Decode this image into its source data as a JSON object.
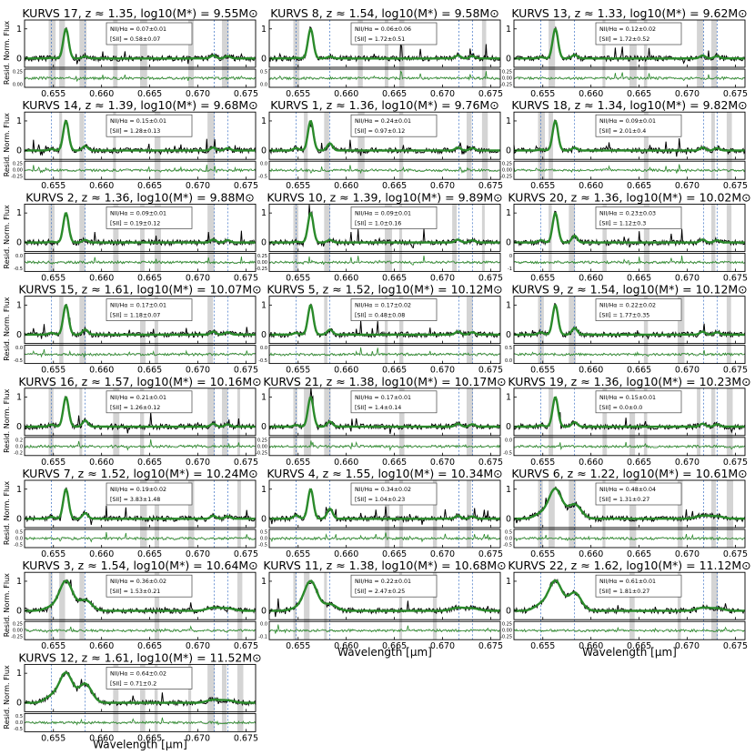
{
  "figure": {
    "ylabel": "Resid. Norm. Flux",
    "xlabel": "Wavelength [μm]",
    "x_ticks": [
      "0.655",
      "0.660",
      "0.665",
      "0.670",
      "0.675"
    ],
    "colors": {
      "data": "#000000",
      "model": "#2a8a2a",
      "line_marker": "#3a6fc4",
      "mask": "#d4d4d4"
    }
  },
  "chart_data": [
    {
      "type": "line",
      "title": "KURVS 17, z ≈ 1.35, log10(M*) = 9.55M⊙",
      "ratio_nii": "NII/Hα = 0.07±0.01",
      "ratio_sii": "[SII] = 0.58±0.07",
      "resid_ticks": [
        "0.25",
        "0.00"
      ],
      "peak": 1,
      "xlim": [
        0.652,
        0.676
      ],
      "ylim": [
        -0.3,
        1.3
      ]
    },
    {
      "type": "line",
      "title": "KURVS 8, z ≈ 1.54, log10(M*) = 9.58M⊙",
      "ratio_nii": "NII/Hα = 0.06±0.06",
      "ratio_sii": "[SII] = 1.72±0.51",
      "resid_ticks": [
        "0.5",
        "0.0"
      ],
      "peak": 1,
      "xlim": [
        0.652,
        0.676
      ],
      "ylim": [
        -0.3,
        1.3
      ]
    },
    {
      "type": "line",
      "title": "KURVS 13, z ≈ 1.33, log10(M*) = 9.62M⊙",
      "ratio_nii": "NII/Hα = 0.12±0.02",
      "ratio_sii": "[SII] = 1.72±0.52",
      "resid_ticks": [
        "0.25",
        "0.00",
        "-0.25"
      ],
      "peak": 1,
      "xlim": [
        0.652,
        0.676
      ],
      "ylim": [
        -0.3,
        1.3
      ]
    },
    {
      "type": "line",
      "title": "KURVS 14, z ≈ 1.39, log10(M*) = 9.68M⊙",
      "ratio_nii": "NII/Hα = 0.15±0.01",
      "ratio_sii": "[SII] = 1.28±0.13",
      "resid_ticks": [
        "0.25",
        "0.00",
        "-0.25"
      ],
      "peak": 1,
      "xlim": [
        0.652,
        0.676
      ],
      "ylim": [
        -0.3,
        1.3
      ]
    },
    {
      "type": "line",
      "title": "KURVS 1, z ≈ 1.36, log10(M*) = 9.76M⊙",
      "ratio_nii": "NII/Hα = 0.24±0.01",
      "ratio_sii": "[SII] = 0.97±0.12",
      "resid_ticks": [
        "0.0",
        "-0.5"
      ],
      "peak": 1,
      "xlim": [
        0.652,
        0.676
      ],
      "ylim": [
        -0.3,
        1.3
      ]
    },
    {
      "type": "line",
      "title": "KURVS 18, z ≈ 1.34, log10(M*) = 9.82M⊙",
      "ratio_nii": "NII/Hα = 0.09±0.01",
      "ratio_sii": "[SII] = 2.01±0.4",
      "resid_ticks": [
        "0.25",
        "0.00",
        "-0.25"
      ],
      "peak": 1,
      "xlim": [
        0.652,
        0.676
      ],
      "ylim": [
        -0.3,
        1.3
      ]
    },
    {
      "type": "line",
      "title": "KURVS 2, z ≈ 1.36, log10(M*) = 9.88M⊙",
      "ratio_nii": "NII/Hα = 0.09±0.01",
      "ratio_sii": "[SII] = 0.19±0.12",
      "resid_ticks": [
        "0.0",
        "-0.5"
      ],
      "peak": 1,
      "xlim": [
        0.652,
        0.676
      ],
      "ylim": [
        -0.3,
        1.3
      ]
    },
    {
      "type": "line",
      "title": "KURVS 10, z ≈ 1.39, log10(M*) = 9.89M⊙",
      "ratio_nii": "NII/Hα = 0.09±0.01",
      "ratio_sii": "[SII] = 1.0±0.16",
      "resid_ticks": [
        "0.25",
        "0.00",
        "-0.25"
      ],
      "peak": 1,
      "xlim": [
        0.652,
        0.676
      ],
      "ylim": [
        -0.3,
        1.3
      ]
    },
    {
      "type": "line",
      "title": "KURVS 20, z ≈ 1.36, log10(M*) = 10.02M⊙",
      "ratio_nii": "NII/Hα = 0.23±0.03",
      "ratio_sii": "[SII] = 1.12±0.3",
      "resid_ticks": [
        "0",
        "-1"
      ],
      "peak": 1,
      "xlim": [
        0.652,
        0.676
      ],
      "ylim": [
        -0.3,
        1.3
      ]
    },
    {
      "type": "line",
      "title": "KURVS 15, z ≈ 1.61, log10(M*) = 10.07M⊙",
      "ratio_nii": "NII/Hα = 0.17±0.01",
      "ratio_sii": "[SII] = 1.18±0.07",
      "resid_ticks": [
        "0.0",
        "-0.5"
      ],
      "peak": 1,
      "xlim": [
        0.652,
        0.676
      ],
      "ylim": [
        -0.3,
        1.3
      ]
    },
    {
      "type": "line",
      "title": "KURVS 5, z ≈ 1.52, log10(M*) = 10.12M⊙",
      "ratio_nii": "NII/Hα = 0.17±0.02",
      "ratio_sii": "[SII] = 0.48±0.08",
      "resid_ticks": [
        "0.0",
        "-0.5"
      ],
      "peak": 1,
      "xlim": [
        0.652,
        0.676
      ],
      "ylim": [
        -0.3,
        1.3
      ]
    },
    {
      "type": "line",
      "title": "KURVS 9, z ≈ 1.54, log10(M*) = 10.12M⊙",
      "ratio_nii": "NII/Hα = 0.22±0.02",
      "ratio_sii": "[SII] = 1.77±0.35",
      "resid_ticks": [
        "0.5",
        "0.0"
      ],
      "peak": 1,
      "xlim": [
        0.652,
        0.676
      ],
      "ylim": [
        -0.3,
        1.3
      ]
    },
    {
      "type": "line",
      "title": "KURVS 16, z ≈ 1.57, log10(M*) = 10.16M⊙",
      "ratio_nii": "NII/Hα = 0.21±0.01",
      "ratio_sii": "[SII] = 1.26±0.12",
      "resid_ticks": [
        "0.2",
        "0.0",
        "-0.2"
      ],
      "peak": 1,
      "xlim": [
        0.652,
        0.676
      ],
      "ylim": [
        -0.3,
        1.3
      ]
    },
    {
      "type": "line",
      "title": "KURVS 21, z ≈ 1.38, log10(M*) = 10.17M⊙",
      "ratio_nii": "NII/Hα = 0.17±0.01",
      "ratio_sii": "[SII] = 1.4±0.14",
      "resid_ticks": [
        "0.25",
        "0.00",
        "-0.25"
      ],
      "peak": 1,
      "xlim": [
        0.652,
        0.676
      ],
      "ylim": [
        -0.3,
        1.3
      ]
    },
    {
      "type": "line",
      "title": "KURVS 19, z ≈ 1.36, log10(M*) = 10.23M⊙",
      "ratio_nii": "NII/Hα = 0.15±0.01",
      "ratio_sii": "[SII] = 0.0±0.0",
      "resid_ticks": [
        "0.0",
        "-0.5"
      ],
      "peak": 1,
      "xlim": [
        0.652,
        0.676
      ],
      "ylim": [
        -0.3,
        1.3
      ]
    },
    {
      "type": "line",
      "title": "KURVS 7, z ≈ 1.52, log10(M*) = 10.24M⊙",
      "ratio_nii": "NII/Hα = 0.19±0.02",
      "ratio_sii": "[SII] = 3.83±1.48",
      "resid_ticks": [
        "0.5",
        "0.0",
        "-0.5"
      ],
      "peak": 1,
      "xlim": [
        0.652,
        0.676
      ],
      "ylim": [
        -0.3,
        1.3
      ]
    },
    {
      "type": "line",
      "title": "KURVS 4, z ≈ 1.55, log10(M*) = 10.34M⊙",
      "ratio_nii": "NII/Hα = 0.34±0.02",
      "ratio_sii": "[SII] = 1.04±0.23",
      "resid_ticks": [
        "0.5",
        "0.0",
        "-0.5"
      ],
      "peak": 1,
      "xlim": [
        0.652,
        0.676
      ],
      "ylim": [
        -0.3,
        1.3
      ]
    },
    {
      "type": "line",
      "title": "KURVS 6, z ≈ 1.22, log10(M*) = 10.61M⊙",
      "ratio_nii": "NII/Hα = 0.48±0.04",
      "ratio_sii": "[SII] = 1.31±0.27",
      "resid_ticks": [
        "0.5",
        "0.0",
        "-0.5"
      ],
      "peak": 1,
      "xlim": [
        0.652,
        0.676
      ],
      "ylim": [
        -0.3,
        1.3
      ]
    },
    {
      "type": "line",
      "title": "KURVS 3, z ≈ 1.54, log10(M*) = 10.64M⊙",
      "ratio_nii": "NII/Hα = 0.36±0.02",
      "ratio_sii": "[SII] = 1.53±0.21",
      "resid_ticks": [
        "0.25",
        "0.00",
        "-0.25"
      ],
      "peak": 1,
      "xlim": [
        0.652,
        0.676
      ],
      "ylim": [
        -0.3,
        1.3
      ]
    },
    {
      "type": "line",
      "title": "KURVS 11, z ≈ 1.38, log10(M*) = 10.68M⊙",
      "ratio_nii": "NII/Hα = 0.22±0.01",
      "ratio_sii": "[SII] = 2.47±0.25",
      "resid_ticks": [
        "0.0",
        "-0.1"
      ],
      "peak": 1,
      "xlim": [
        0.652,
        0.676
      ],
      "ylim": [
        -0.3,
        1.3
      ]
    },
    {
      "type": "line",
      "title": "KURVS 22, z ≈ 1.62, log10(M*) = 11.12M⊙",
      "ratio_nii": "NII/Hα = 0.61±0.01",
      "ratio_sii": "[SII] = 1.81±0.27",
      "resid_ticks": [
        "0.25",
        "0.00",
        "-0.25"
      ],
      "peak": 1,
      "xlim": [
        0.652,
        0.676
      ],
      "ylim": [
        -0.3,
        1.3
      ]
    },
    {
      "type": "line",
      "title": "KURVS 12, z ≈ 1.61, log10(M*) = 11.52M⊙",
      "ratio_nii": "NII/Hα = 0.64±0.02",
      "ratio_sii": "[SII] = 0.71±0.2",
      "resid_ticks": [
        "0.5",
        "0.0",
        "-0.5"
      ],
      "peak": 1,
      "xlim": [
        0.652,
        0.676
      ],
      "ylim": [
        -0.3,
        1.3
      ]
    }
  ]
}
